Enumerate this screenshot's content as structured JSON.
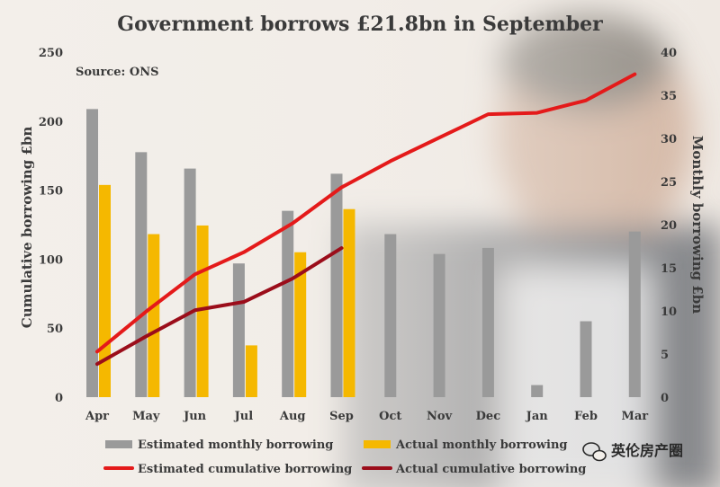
{
  "title": "Government borrows £21.8bn in September",
  "source": "Source: ONS",
  "watermark": "英伦房产圈",
  "colors": {
    "estimated_monthly": "#9a9a9a",
    "actual_monthly": "#f5b800",
    "estimated_cumulative": "#e41a1a",
    "actual_cumulative": "#9b0d1a",
    "text": "#3a3a3a"
  },
  "chart_data": {
    "type": "bar",
    "categories": [
      "Apr",
      "May",
      "Jun",
      "Jul",
      "Aug",
      "Sep",
      "Oct",
      "Nov",
      "Dec",
      "Jan",
      "Feb",
      "Mar"
    ],
    "ylabel": "Cumulative borrowing £bn",
    "ylabel_right": "Monthly borrowing £bn",
    "ylim": [
      0,
      250
    ],
    "yticks": [
      0,
      50,
      100,
      150,
      200,
      250
    ],
    "ylim_right": [
      0,
      40
    ],
    "yticks_right": [
      0,
      5,
      10,
      15,
      20,
      25,
      30,
      35,
      40
    ],
    "grid": false,
    "legend_position": "bottom",
    "series": [
      {
        "name": "Estimated monthly borrowing",
        "type": "bar",
        "axis": "right",
        "color": "#9a9a9a",
        "values": [
          33.4,
          28.4,
          26.5,
          15.5,
          21.6,
          25.9,
          18.9,
          16.6,
          17.3,
          1.4,
          8.8,
          19.2
        ]
      },
      {
        "name": "Actual monthly borrowing",
        "type": "bar",
        "axis": "right",
        "color": "#f5b800",
        "values": [
          24.6,
          18.9,
          19.9,
          6.0,
          16.8,
          21.8,
          null,
          null,
          null,
          null,
          null,
          null
        ]
      },
      {
        "name": "Estimated cumulative borrowing",
        "type": "line",
        "axis": "left",
        "color": "#e41a1a",
        "values": [
          33,
          62,
          89,
          105,
          126,
          152,
          171,
          188,
          205,
          206,
          215,
          234
        ]
      },
      {
        "name": "Actual cumulative borrowing",
        "type": "line",
        "axis": "left",
        "color": "#9b0d1a",
        "values": [
          24,
          44,
          63,
          69,
          86,
          108,
          null,
          null,
          null,
          null,
          null,
          null
        ]
      }
    ]
  }
}
